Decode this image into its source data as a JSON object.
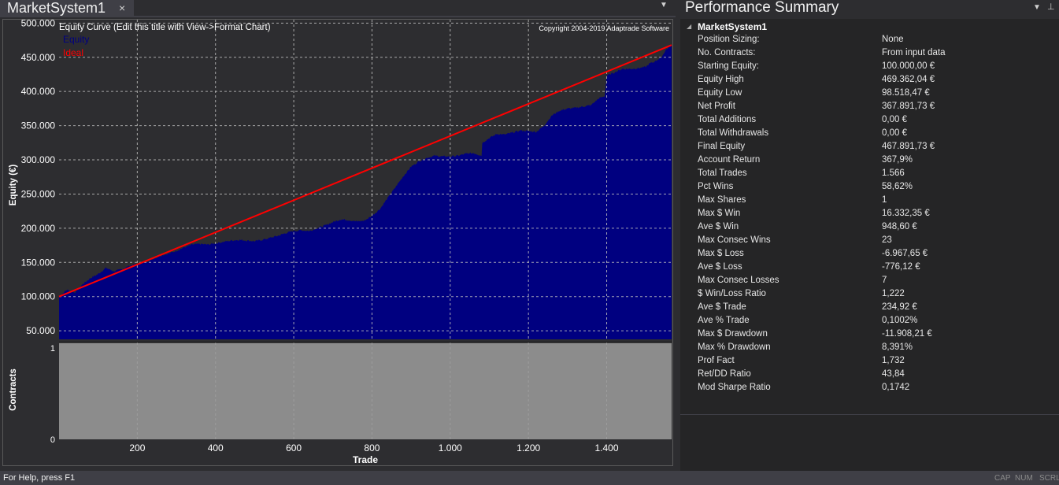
{
  "document_tab": {
    "title": "MarketSystem1",
    "close_glyph": "×",
    "dropdown_glyph": "▼"
  },
  "chart_data": {
    "type": "area",
    "title": "Equity Curve (Edit this title with View->Format Chart)",
    "copyright": "Copyright 2004-2019 Adaptrade Software",
    "xlabel": "Trade",
    "ylabel": "Equity (€)",
    "ylim": [
      37500,
      505000
    ],
    "xlim": [
      0,
      1566
    ],
    "x_ticks": [
      200,
      400,
      600,
      800,
      1000,
      1200,
      1400
    ],
    "x_tick_labels": [
      "200",
      "400",
      "600",
      "800",
      "1.000",
      "1.200",
      "1.400"
    ],
    "y_ticks": [
      50000,
      100000,
      150000,
      200000,
      250000,
      300000,
      350000,
      400000,
      450000,
      500000
    ],
    "y_tick_labels": [
      "50.000",
      "100.000",
      "150.000",
      "200.000",
      "250.000",
      "300.000",
      "350.000",
      "400.000",
      "450.000",
      "500.000"
    ],
    "grid": true,
    "legend": "top-left",
    "series": [
      {
        "name": "Equity",
        "color": "#000080",
        "x": [
          0,
          20,
          40,
          60,
          80,
          100,
          120,
          140,
          160,
          180,
          200,
          220,
          240,
          260,
          280,
          300,
          320,
          340,
          360,
          380,
          400,
          420,
          440,
          460,
          480,
          500,
          520,
          540,
          560,
          580,
          600,
          620,
          640,
          660,
          680,
          700,
          720,
          740,
          760,
          780,
          800,
          820,
          840,
          860,
          880,
          900,
          920,
          940,
          960,
          980,
          1000,
          1020,
          1040,
          1060,
          1080,
          1082,
          1100,
          1120,
          1140,
          1160,
          1180,
          1200,
          1220,
          1240,
          1260,
          1280,
          1300,
          1320,
          1340,
          1360,
          1380,
          1395,
          1400,
          1420,
          1440,
          1460,
          1480,
          1500,
          1510,
          1520,
          1540,
          1550,
          1566
        ],
        "values": [
          100000,
          110000,
          106000,
          118000,
          127000,
          133000,
          142000,
          137000,
          140000,
          145000,
          148000,
          150000,
          155000,
          160000,
          163000,
          167000,
          172000,
          176000,
          177000,
          176000,
          178000,
          180000,
          182000,
          183000,
          182000,
          181000,
          183000,
          186000,
          189000,
          193000,
          196000,
          197000,
          196000,
          200000,
          204000,
          209000,
          213000,
          212000,
          210000,
          211000,
          218000,
          228000,
          244000,
          260000,
          276000,
          290000,
          298000,
          303000,
          306000,
          305000,
          305000,
          306000,
          309000,
          310000,
          306000,
          325000,
          332000,
          338000,
          337000,
          340000,
          343000,
          342000,
          341000,
          350000,
          365000,
          372000,
          375000,
          376000,
          378000,
          380000,
          390000,
          393000,
          423000,
          428000,
          433000,
          433000,
          434000,
          436000,
          441000,
          443000,
          450000,
          460000,
          467891
        ]
      },
      {
        "name": "Ideal",
        "color": "#ff0000",
        "x": [
          0,
          1566
        ],
        "values": [
          100000,
          467891
        ]
      }
    ],
    "contracts": {
      "ylabel": "Contracts",
      "ylim": [
        0,
        1
      ],
      "y_tick_labels": [
        "0",
        "1"
      ],
      "value": 1,
      "fill_color": "#8c8c8c"
    }
  },
  "summary": {
    "title": "Performance Summary",
    "dropdown_glyph": "▼",
    "pin_glyph": "⊥",
    "section": "MarketSystem1",
    "toggle_glyph": "◢",
    "rows": [
      {
        "label": "Position Sizing:",
        "value": "None"
      },
      {
        "label": "No. Contracts:",
        "value": "From input data"
      },
      {
        "label": "Starting Equity:",
        "value": "100.000,00 €"
      },
      {
        "label": "Equity High",
        "value": "469.362,04 €"
      },
      {
        "label": "Equity Low",
        "value": "98.518,47 €"
      },
      {
        "label": "Net Profit",
        "value": "367.891,73 €"
      },
      {
        "label": "Total Additions",
        "value": "0,00 €"
      },
      {
        "label": "Total Withdrawals",
        "value": "0,00 €"
      },
      {
        "label": "Final Equity",
        "value": "467.891,73 €"
      },
      {
        "label": "Account Return",
        "value": "367,9%"
      },
      {
        "label": "Total Trades",
        "value": "1.566"
      },
      {
        "label": "Pct Wins",
        "value": "58,62%"
      },
      {
        "label": "Max Shares",
        "value": "1"
      },
      {
        "label": "Max $ Win",
        "value": "16.332,35 €"
      },
      {
        "label": "Ave $ Win",
        "value": "948,60 €"
      },
      {
        "label": "Max Consec Wins",
        "value": "23"
      },
      {
        "label": "Max $ Loss",
        "value": "-6.967,65 €"
      },
      {
        "label": "Ave $ Loss",
        "value": "-776,12 €"
      },
      {
        "label": "Max Consec Losses",
        "value": "7"
      },
      {
        "label": "$ Win/Loss Ratio",
        "value": "1,222"
      },
      {
        "label": "Ave $ Trade",
        "value": "234,92 €"
      },
      {
        "label": "Ave % Trade",
        "value": "0,1002%"
      },
      {
        "label": "Max $ Drawdown",
        "value": "-11.908,21 €"
      },
      {
        "label": "Max % Drawdown",
        "value": "8,391%"
      },
      {
        "label": "Prof Fact",
        "value": "1,732"
      },
      {
        "label": "Ret/DD Ratio",
        "value": "43,84"
      },
      {
        "label": "Mod Sharpe Ratio",
        "value": "0,1742"
      }
    ]
  },
  "status_bar": {
    "text": "For Help, press F1",
    "indicators": [
      "CAP",
      "NUM",
      "SCRL"
    ]
  }
}
